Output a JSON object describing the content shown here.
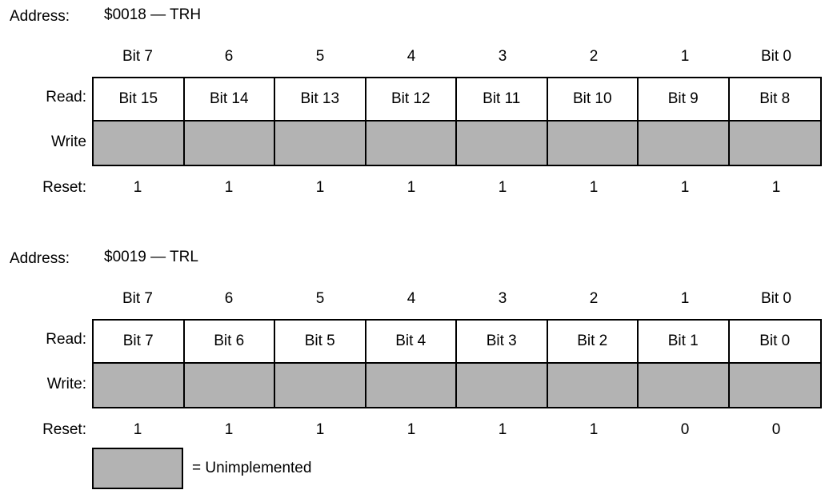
{
  "registers": [
    {
      "address_label": "Address:",
      "address_value": "$0018 — TRH",
      "bit_headers": [
        "Bit 7",
        "6",
        "5",
        "4",
        "3",
        "2",
        "1",
        "Bit 0"
      ],
      "read_label": "Read:",
      "read_bits": [
        "Bit 15",
        "Bit 14",
        "Bit 13",
        "Bit 12",
        "Bit 11",
        "Bit 10",
        "Bit 9",
        "Bit 8"
      ],
      "write_label": "Write",
      "reset_label": "Reset:",
      "reset_values": [
        "1",
        "1",
        "1",
        "1",
        "1",
        "1",
        "1",
        "1"
      ]
    },
    {
      "address_label": "Address:",
      "address_value": "$0019 — TRL",
      "bit_headers": [
        "Bit 7",
        "6",
        "5",
        "4",
        "3",
        "2",
        "1",
        "Bit 0"
      ],
      "read_label": "Read:",
      "read_bits": [
        "Bit 7",
        "Bit 6",
        "Bit 5",
        "Bit 4",
        "Bit 3",
        "Bit 2",
        "Bit 1",
        "Bit 0"
      ],
      "write_label": "Write:",
      "reset_label": "Reset:",
      "reset_values": [
        "1",
        "1",
        "1",
        "1",
        "1",
        "1",
        "0",
        "0"
      ]
    }
  ],
  "legend": {
    "text": "= Unimplemented",
    "swatch_color": "#b3b3b3"
  },
  "colors": {
    "unimplemented": "#b3b3b3",
    "border": "#000000"
  }
}
